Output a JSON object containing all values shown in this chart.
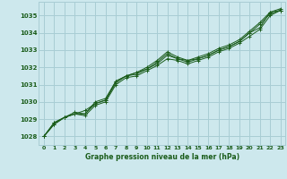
{
  "title": "Graphe pression niveau de la mer (hPa)",
  "bg_color": "#cde8ed",
  "grid_color": "#a8cdd4",
  "line_color": "#1a5c1a",
  "marker_color": "#1a5c1a",
  "xlim": [
    -0.5,
    23.5
  ],
  "ylim": [
    1027.5,
    1035.8
  ],
  "xticks": [
    0,
    1,
    2,
    3,
    4,
    5,
    6,
    7,
    8,
    9,
    10,
    11,
    12,
    13,
    14,
    15,
    16,
    17,
    18,
    19,
    20,
    21,
    22,
    23
  ],
  "yticks": [
    1028,
    1029,
    1030,
    1031,
    1032,
    1033,
    1034,
    1035
  ],
  "series": [
    [
      1028.0,
      1028.7,
      1029.1,
      1029.3,
      1029.5,
      1029.9,
      1030.1,
      1031.2,
      1031.5,
      1031.7,
      1031.9,
      1032.2,
      1032.7,
      1032.5,
      1032.3,
      1032.5,
      1032.7,
      1033.0,
      1033.2,
      1033.5,
      1034.0,
      1034.3,
      1035.2,
      1035.3
    ],
    [
      1028.0,
      1028.7,
      1029.1,
      1029.3,
      1029.2,
      1029.8,
      1030.0,
      1031.0,
      1031.4,
      1031.5,
      1031.8,
      1032.1,
      1032.5,
      1032.4,
      1032.2,
      1032.4,
      1032.6,
      1032.9,
      1033.1,
      1033.4,
      1033.8,
      1034.2,
      1035.0,
      1035.3
    ],
    [
      1028.0,
      1028.8,
      1029.1,
      1029.3,
      1029.3,
      1029.9,
      1030.1,
      1031.1,
      1031.5,
      1031.6,
      1031.9,
      1032.3,
      1032.8,
      1032.5,
      1032.4,
      1032.5,
      1032.7,
      1033.0,
      1033.2,
      1033.5,
      1034.0,
      1034.5,
      1035.1,
      1035.3
    ],
    [
      1028.0,
      1028.8,
      1029.1,
      1029.4,
      1029.3,
      1030.0,
      1030.2,
      1031.2,
      1031.5,
      1031.7,
      1032.0,
      1032.4,
      1032.9,
      1032.6,
      1032.4,
      1032.6,
      1032.8,
      1033.1,
      1033.3,
      1033.6,
      1034.1,
      1034.6,
      1035.2,
      1035.4
    ]
  ]
}
